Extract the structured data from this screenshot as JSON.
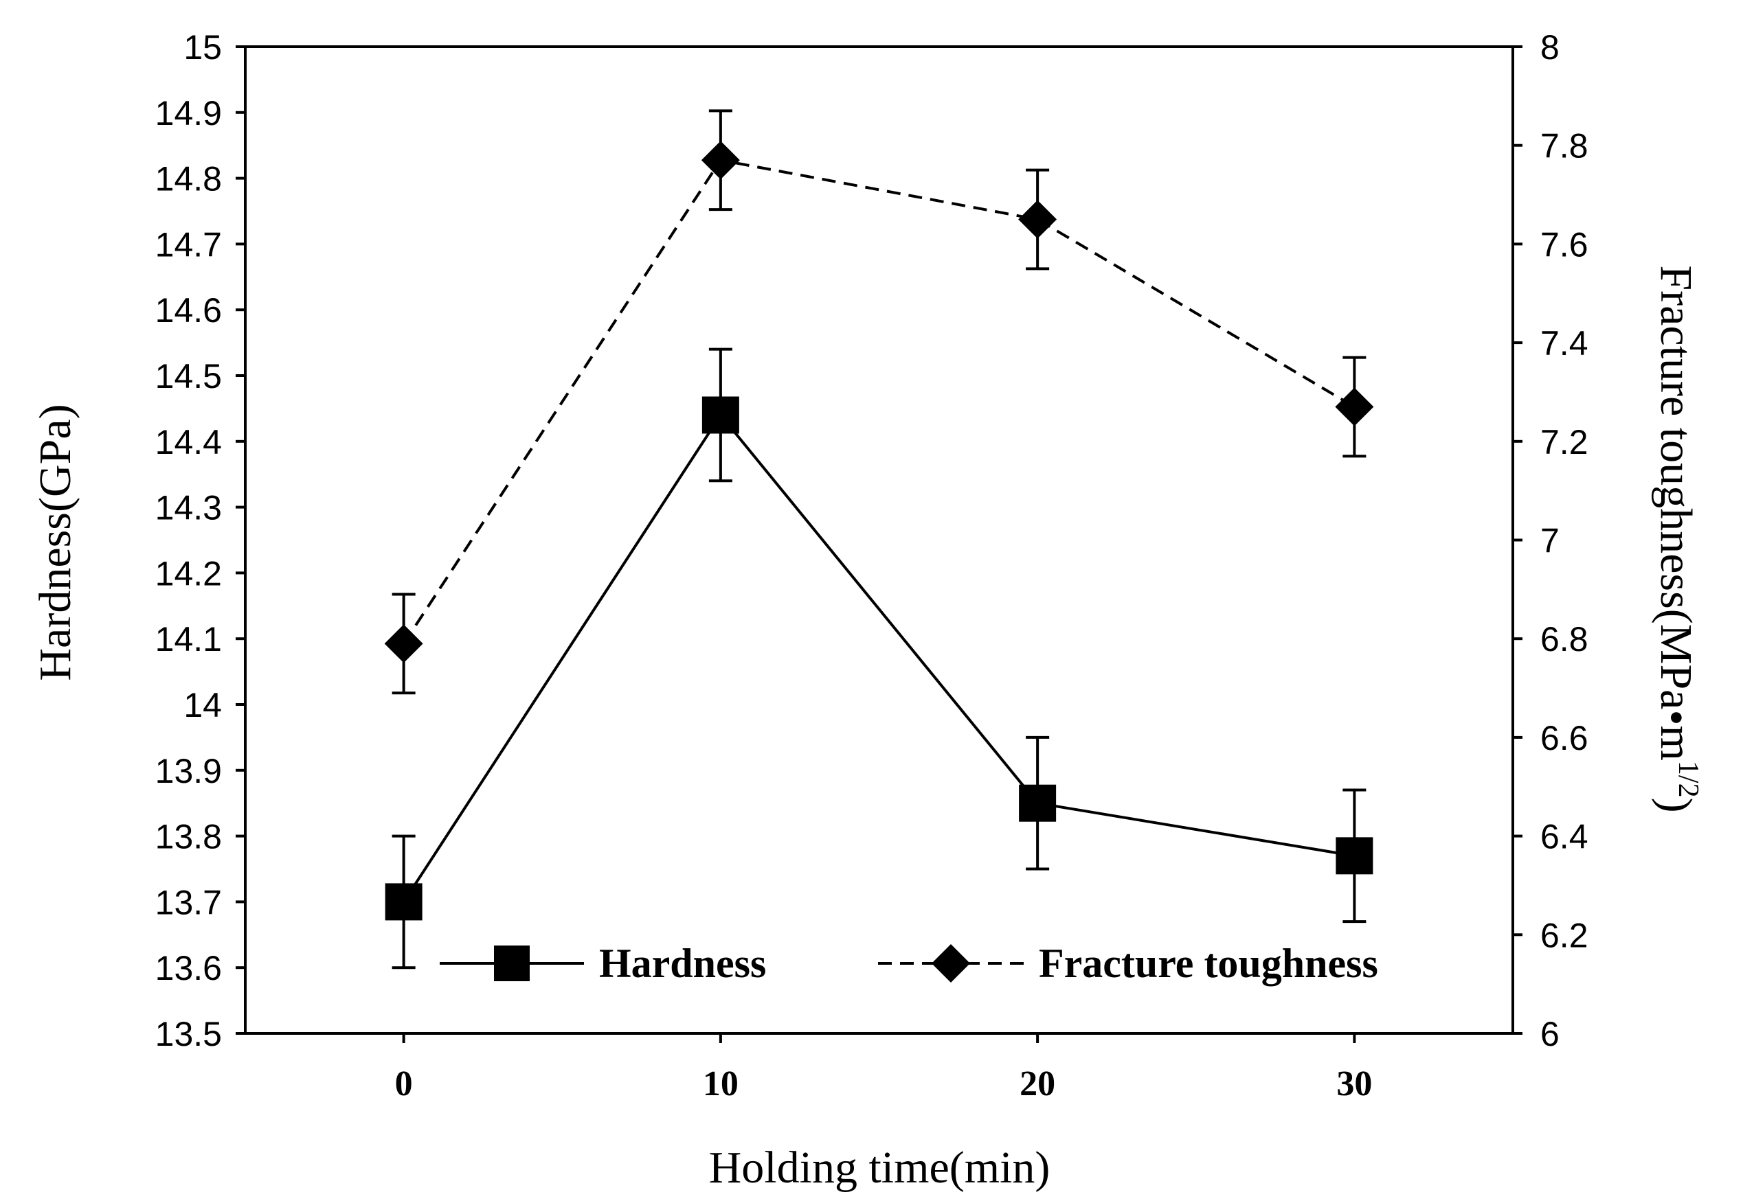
{
  "chart_data": {
    "type": "line",
    "title": "",
    "xlabel": "Holding time(min)",
    "ylabel": "Hardness(GPa)",
    "y2label": {
      "main": "Fracture toughness(MPa•m",
      "sup": "1/2",
      "close": ")"
    },
    "x": [
      0,
      10,
      20,
      30
    ],
    "x_ticks": [
      "0",
      "10",
      "20",
      "30"
    ],
    "xlim": [
      -5,
      35
    ],
    "ylim": [
      13.5,
      15
    ],
    "y_ticks": [
      "13.5",
      "13.6",
      "13.7",
      "13.8",
      "13.9",
      "14",
      "14.1",
      "14.2",
      "14.3",
      "14.4",
      "14.5",
      "14.6",
      "14.7",
      "14.8",
      "14.9",
      "15"
    ],
    "y2lim": [
      6,
      8
    ],
    "y2_ticks": [
      "6",
      "6.2",
      "6.4",
      "6.6",
      "6.8",
      "7",
      "7.2",
      "7.4",
      "7.6",
      "7.8",
      "8"
    ],
    "grid": false,
    "legend_position": "bottom",
    "series": [
      {
        "name": "Hardness",
        "axis": "left",
        "marker": "square",
        "line_style": "solid",
        "values": [
          13.7,
          14.44,
          13.85,
          13.77
        ],
        "error": [
          0.1,
          0.1,
          0.1,
          0.1
        ]
      },
      {
        "name": "Fracture toughness",
        "axis": "right",
        "marker": "diamond",
        "line_style": "dashed",
        "values": [
          6.79,
          7.77,
          7.65,
          7.27
        ],
        "error": [
          0.1,
          0.1,
          0.1,
          0.1
        ]
      }
    ],
    "colors": {
      "line": "#000000",
      "background": "#ffffff"
    }
  }
}
